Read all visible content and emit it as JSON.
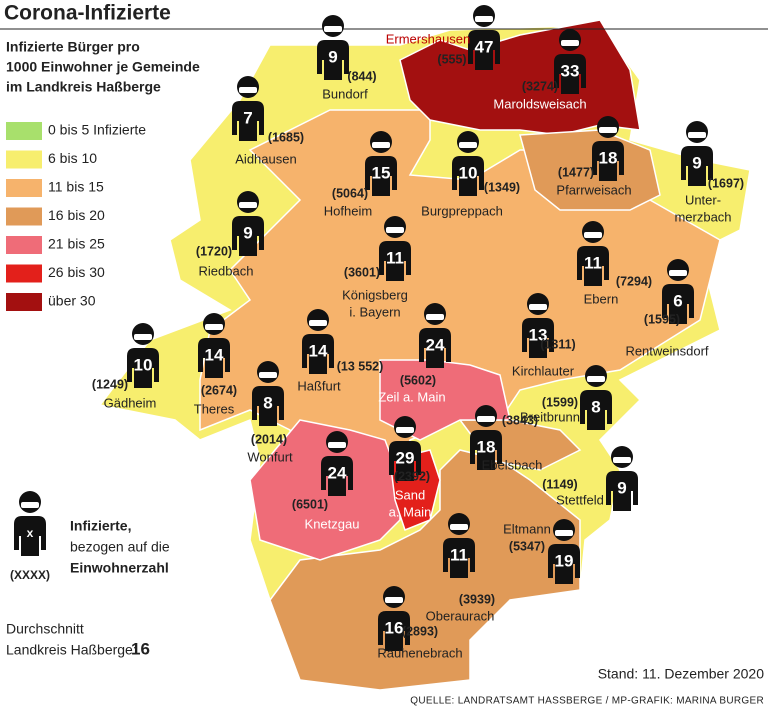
{
  "title": "Corona-Infizierte",
  "subtitle": [
    "Infizierte Bürger pro",
    "1000 Einwohner je Gemeinde",
    "im Landkreis Haßberge"
  ],
  "legend": [
    {
      "label": "0 bis 5 Infizierte",
      "color": "#a8e06c"
    },
    {
      "label": "6 bis 10",
      "color": "#f7ee6e"
    },
    {
      "label": "11 bis 15",
      "color": "#f6b36c"
    },
    {
      "label": "16 bis 20",
      "color": "#e09a58"
    },
    {
      "label": "21 bis 25",
      "color": "#ef6c78"
    },
    {
      "label": "26 bis 30",
      "color": "#e3201b"
    },
    {
      "label": "über 30",
      "color": "#a31010"
    }
  ],
  "key": {
    "symbol": "x",
    "population": "(XXXX)",
    "text": [
      "Infizierte,",
      "bezogen auf die",
      "Einwohnerzahl"
    ]
  },
  "average": {
    "lines": [
      "Durchschnitt",
      "Landkreis Haßberge:"
    ],
    "value": "16"
  },
  "municipalities": [
    {
      "name": [
        "Ermershausen"
      ],
      "infected": "47",
      "population": "(555)"
    },
    {
      "name": [
        "Bundorf"
      ],
      "infected": "9",
      "population": "(844)"
    },
    {
      "name": [
        "Maroldsweisach"
      ],
      "infected": "33",
      "population": "(3274)"
    },
    {
      "name": [
        "Aidhausen"
      ],
      "infected": "7",
      "population": "(1685)"
    },
    {
      "name": [
        "Hofheim"
      ],
      "infected": "15",
      "population": "(5064)"
    },
    {
      "name": [
        "Burgpreppach"
      ],
      "infected": "10",
      "population": "(1349)"
    },
    {
      "name": [
        "Pfarrweisach"
      ],
      "infected": "18",
      "population": "(1477)"
    },
    {
      "name": [
        "Unter-",
        "merzbach"
      ],
      "infected": "9",
      "population": "(1697)"
    },
    {
      "name": [
        "Riedbach"
      ],
      "infected": "9",
      "population": "(1720)"
    },
    {
      "name": [
        "Königsberg",
        "i. Bayern"
      ],
      "infected": "11",
      "population": "(3601)"
    },
    {
      "name": [
        "Ebern"
      ],
      "infected": "11",
      "population": "(7294)"
    },
    {
      "name": [
        "Rentweinsdorf"
      ],
      "infected": "6",
      "population": "(1595)"
    },
    {
      "name": [
        "Gädheim"
      ],
      "infected": "10",
      "population": "(1249)"
    },
    {
      "name": [
        "Theres"
      ],
      "infected": "14",
      "population": "(2674)"
    },
    {
      "name": [
        "Haßfurt"
      ],
      "infected": "14",
      "population": "(13 552)"
    },
    {
      "name": [
        "Zeil a. Main"
      ],
      "infected": "24",
      "population": "(5602)"
    },
    {
      "name": [
        "Kirchlauter"
      ],
      "infected": "13",
      "population": "(1311)"
    },
    {
      "name": [
        "Wonfurt"
      ],
      "infected": "8",
      "population": "(2014)"
    },
    {
      "name": [
        "Breitbrunn"
      ],
      "infected": "8",
      "population": "(1599)"
    },
    {
      "name": [
        "Ebelsbach"
      ],
      "infected": "18",
      "population": "(3843)"
    },
    {
      "name": [
        "Knetzgau"
      ],
      "infected": "24",
      "population": "(6501)"
    },
    {
      "name": [
        "Sand",
        "a. Main"
      ],
      "infected": "29",
      "population": "(2392)"
    },
    {
      "name": [
        "Stettfeld"
      ],
      "infected": "9",
      "population": "(1149)"
    },
    {
      "name": [
        "Eltmann"
      ],
      "infected": "19",
      "population": "(5347)"
    },
    {
      "name": [
        "Oberaurach"
      ],
      "infected": "11",
      "population": "(3939)"
    },
    {
      "name": [
        "Rauhenebrach"
      ],
      "infected": "16",
      "population": "(2893)"
    }
  ],
  "date": "Stand: 11. Dezember 2020",
  "source": "QUELLE: LANDRATSAMT HASSBERGE / MP-GRAFIK: MARINA BURGER"
}
